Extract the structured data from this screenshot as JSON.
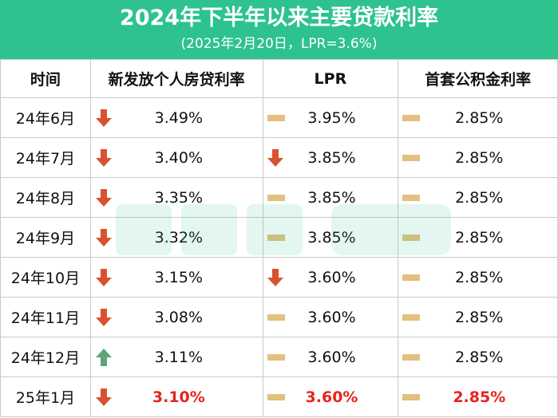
{
  "header": {
    "title": "2024年下半年以来主要贷款利率",
    "subtitle": "(2025年2月20日，LPR=3.6%)"
  },
  "columns": [
    "时间",
    "新发放个人房贷利率",
    "LPR",
    "首套公积金利率"
  ],
  "rows": [
    {
      "time": "24年6月",
      "rate": "3.49%",
      "rate_trend": "down",
      "lpr": "3.95%",
      "lpr_trend": "flat",
      "fund": "2.85%",
      "fund_trend": "flat"
    },
    {
      "time": "24年7月",
      "rate": "3.40%",
      "rate_trend": "down",
      "lpr": "3.85%",
      "lpr_trend": "down",
      "fund": "2.85%",
      "fund_trend": "flat"
    },
    {
      "time": "24年8月",
      "rate": "3.35%",
      "rate_trend": "down",
      "lpr": "3.85%",
      "lpr_trend": "flat",
      "fund": "2.85%",
      "fund_trend": "flat"
    },
    {
      "time": "24年9月",
      "rate": "3.32%",
      "rate_trend": "down",
      "lpr": "3.85%",
      "lpr_trend": "flat",
      "fund": "2.85%",
      "fund_trend": "flat"
    },
    {
      "time": "24年10月",
      "rate": "3.15%",
      "rate_trend": "down",
      "lpr": "3.60%",
      "lpr_trend": "down",
      "fund": "2.85%",
      "fund_trend": "flat"
    },
    {
      "time": "24年11月",
      "rate": "3.08%",
      "rate_trend": "down",
      "lpr": "3.60%",
      "lpr_trend": "flat",
      "fund": "2.85%",
      "fund_trend": "flat"
    },
    {
      "time": "24年12月",
      "rate": "3.11%",
      "rate_trend": "up",
      "lpr": "3.60%",
      "lpr_trend": "flat",
      "fund": "2.85%",
      "fund_trend": "flat"
    },
    {
      "time": "25年1月",
      "rate": "3.10%",
      "rate_trend": "down",
      "lpr": "3.60%",
      "lpr_trend": "flat",
      "fund": "2.85%",
      "fund_trend": "flat",
      "highlight": true
    }
  ],
  "icons": {
    "down": "down-arrow-icon",
    "up": "up-arrow-icon",
    "flat": "flat-bar-icon"
  },
  "colors": {
    "banner": "#2ec28f",
    "down": "#d9522f",
    "up": "#5ea37c",
    "flat": "#e3c07e",
    "highlight": "#e8231e"
  }
}
